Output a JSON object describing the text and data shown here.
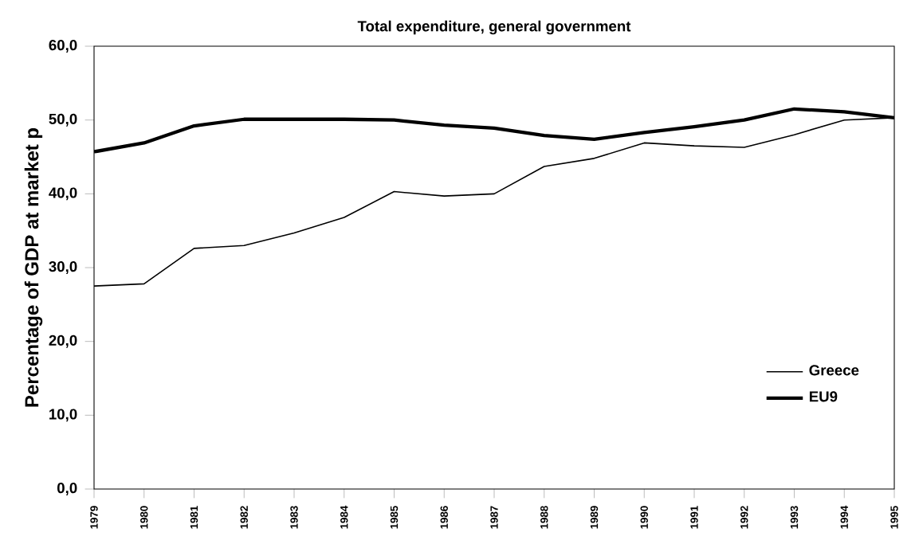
{
  "chart_data": {
    "type": "line",
    "title": "Total expenditure, general government",
    "ylabel": "Percentage of GDP at market p",
    "categories": [
      "1979",
      "1980",
      "1981",
      "1982",
      "1983",
      "1984",
      "1985",
      "1986",
      "1987",
      "1988",
      "1989",
      "1990",
      "1991",
      "1992",
      "1993",
      "1994",
      "1995"
    ],
    "series": [
      {
        "name": "Greece",
        "color": "#000000",
        "values": [
          27.5,
          27.8,
          32.6,
          33.0,
          34.7,
          36.8,
          40.3,
          39.7,
          40.0,
          43.7,
          44.8,
          46.9,
          46.5,
          46.3,
          48.0,
          50.0,
          50.3
        ]
      },
      {
        "name": "EU9",
        "color": "#000000",
        "values": [
          45.7,
          46.9,
          49.2,
          50.1,
          50.1,
          50.1,
          50.0,
          49.3,
          48.9,
          47.9,
          47.4,
          48.3,
          49.1,
          50.0,
          51.5,
          51.1,
          50.3
        ]
      }
    ],
    "ylim": [
      0,
      60
    ],
    "yticks": [
      {
        "value": 0,
        "label": "0,0"
      },
      {
        "value": 10,
        "label": "10,0"
      },
      {
        "value": 20,
        "label": "20,0"
      },
      {
        "value": 30,
        "label": "30,0"
      },
      {
        "value": 40,
        "label": "40,0"
      },
      {
        "value": 50,
        "label": "50,0"
      },
      {
        "value": 60,
        "label": "60,0"
      }
    ],
    "legend": "bottom right",
    "grid": false,
    "marker": "none",
    "line_style": "solid"
  }
}
